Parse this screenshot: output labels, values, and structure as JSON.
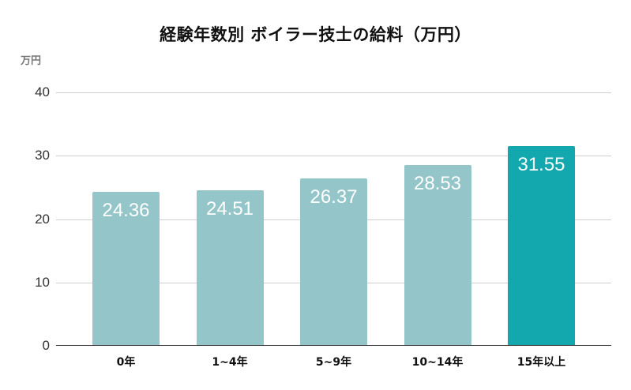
{
  "chart_data": {
    "type": "bar",
    "title": "経験年数別 ボイラー技士の給料（万円）",
    "xlabel": "",
    "ylabel": "万円",
    "ylim": [
      0,
      40
    ],
    "yticks": [
      "0",
      "10",
      "20",
      "30",
      "40"
    ],
    "grid": true,
    "legend": null,
    "categories": [
      "0年",
      "1~4年",
      "5~9年",
      "10~14年",
      "15年以上"
    ],
    "values": [
      24.36,
      24.51,
      26.37,
      28.53,
      31.55
    ],
    "data_labels": [
      "24.36",
      "24.51",
      "26.37",
      "28.53",
      "31.55"
    ],
    "highlighted_index": 4,
    "colors": {
      "bar": "#93c5c9",
      "highlight": "#13a7ae",
      "grid": "#cfcfcf",
      "axis": "#333333"
    }
  }
}
